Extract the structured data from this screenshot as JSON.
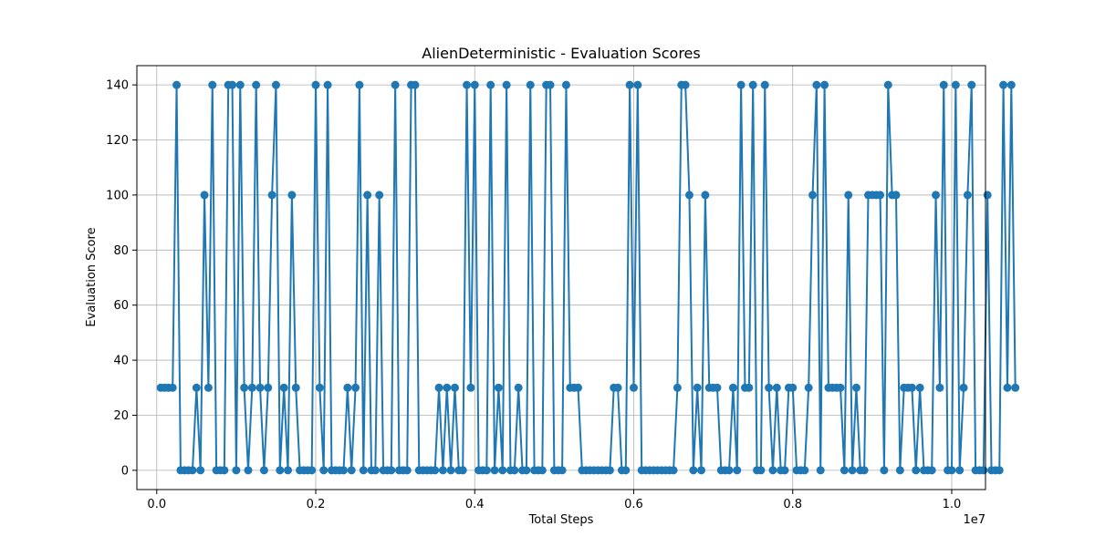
{
  "chart_data": {
    "type": "line",
    "title": "AlienDeterministic - Evaluation Scores",
    "xlabel": "Total Steps",
    "ylabel": "Evaluation Score",
    "x_multiplier_label": "1e7",
    "xlim": [
      -0.025,
      1.0425
    ],
    "ylim": [
      -7,
      147
    ],
    "x_ticks": [
      0.0,
      0.2,
      0.4,
      0.6,
      0.8,
      1.0
    ],
    "x_tick_labels": [
      "0.0",
      "0.2",
      "0.4",
      "0.6",
      "0.8",
      "1.0"
    ],
    "y_ticks": [
      0,
      20,
      40,
      60,
      80,
      100,
      120,
      140
    ],
    "y_tick_labels": [
      "0",
      "20",
      "40",
      "60",
      "80",
      "100",
      "120",
      "140"
    ],
    "grid": true,
    "line_color": "#1f77b4",
    "marker": "circle",
    "series": [
      {
        "x_step": 0.005,
        "x_start": 0.005,
        "values": [
          30,
          30,
          30,
          30,
          140,
          0,
          0,
          0,
          0,
          30,
          0,
          100,
          30,
          140,
          0,
          0,
          0,
          140,
          140,
          0,
          140,
          30,
          0,
          30,
          140,
          30,
          0,
          30,
          100,
          140,
          0,
          30,
          0,
          100,
          30,
          0,
          0,
          0,
          0,
          140,
          30,
          0,
          140,
          0,
          0,
          0,
          0,
          30,
          0,
          30,
          140,
          0,
          100,
          0,
          0,
          100,
          0,
          0,
          0,
          140,
          0,
          0,
          0,
          140,
          140,
          0,
          0,
          0,
          0,
          0,
          30,
          0,
          30,
          0,
          30,
          0,
          0,
          140,
          30,
          140,
          0,
          0,
          0,
          140,
          0,
          30,
          0,
          140,
          0,
          0,
          30,
          0,
          0,
          140,
          0,
          0,
          0,
          140,
          140,
          0,
          0,
          0,
          140,
          30,
          30,
          30,
          0,
          0,
          0,
          0,
          0,
          0,
          0,
          0,
          30,
          30,
          0,
          0,
          140,
          30,
          140,
          0,
          0,
          0,
          0,
          0,
          0,
          0,
          0,
          0,
          30,
          140,
          140,
          100,
          0,
          30,
          0,
          100,
          30,
          30,
          30,
          0,
          0,
          0,
          30,
          0,
          140,
          30,
          30,
          140,
          0,
          0,
          140,
          30,
          0,
          30,
          0,
          0,
          30,
          30,
          0,
          0,
          0,
          30,
          100,
          140,
          0,
          140,
          30,
          30,
          30,
          30,
          0,
          100,
          0,
          30,
          0,
          0,
          100,
          100,
          100,
          100,
          0,
          140,
          100,
          100,
          0,
          30,
          30,
          30,
          0,
          30,
          0,
          0,
          0,
          100,
          30,
          140,
          0,
          0,
          140,
          0,
          30,
          100,
          140,
          0,
          0,
          0,
          100,
          0,
          0,
          0,
          140,
          30,
          140,
          30
        ]
      }
    ]
  }
}
